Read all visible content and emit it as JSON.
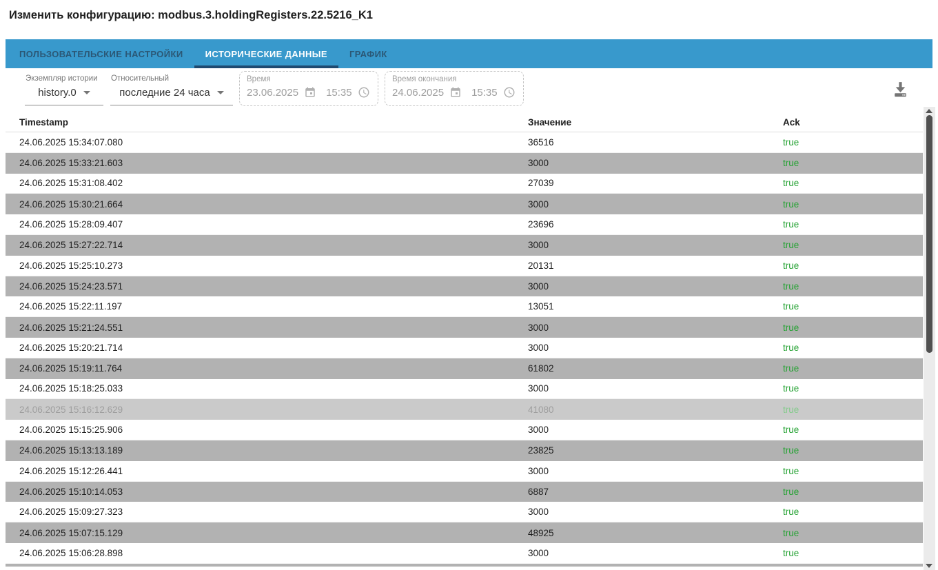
{
  "page": {
    "title": "Изменить конфигурацию: modbus.3.holdingRegisters.22.5216_K1"
  },
  "tabs": [
    {
      "label": "ПОЛЬЗОВАТЕЛЬСКИЕ НАСТРОЙКИ",
      "active": false
    },
    {
      "label": "ИСТОРИЧЕСКИЕ ДАННЫЕ",
      "active": true
    },
    {
      "label": "ГРАФИК",
      "active": false
    }
  ],
  "toolbar": {
    "history_instance": {
      "label": "Экземпляр истории",
      "value": "history.0"
    },
    "relative_range": {
      "label": "Относительный",
      "value": "последние 24 часа"
    },
    "time_start": {
      "label": "Время",
      "date": "23.06.2025",
      "time": "15:35"
    },
    "time_end": {
      "label": "Время окончания",
      "date": "24.06.2025",
      "time": "15:35"
    },
    "download_icon": "download-to-tray"
  },
  "table": {
    "columns": {
      "timestamp": "Timestamp",
      "value": "Значение",
      "ack": "Ack"
    },
    "rows": [
      {
        "timestamp": "24.06.2025 15:34:07.080",
        "value": "36516",
        "ack": "true",
        "variant": "white"
      },
      {
        "timestamp": "24.06.2025 15:33:21.603",
        "value": "3000",
        "ack": "true",
        "variant": "gray"
      },
      {
        "timestamp": "24.06.2025 15:31:08.402",
        "value": "27039",
        "ack": "true",
        "variant": "white"
      },
      {
        "timestamp": "24.06.2025 15:30:21.664",
        "value": "3000",
        "ack": "true",
        "variant": "gray"
      },
      {
        "timestamp": "24.06.2025 15:28:09.407",
        "value": "23696",
        "ack": "true",
        "variant": "white"
      },
      {
        "timestamp": "24.06.2025 15:27:22.714",
        "value": "3000",
        "ack": "true",
        "variant": "gray"
      },
      {
        "timestamp": "24.06.2025 15:25:10.273",
        "value": "20131",
        "ack": "true",
        "variant": "white"
      },
      {
        "timestamp": "24.06.2025 15:24:23.571",
        "value": "3000",
        "ack": "true",
        "variant": "gray"
      },
      {
        "timestamp": "24.06.2025 15:22:11.197",
        "value": "13051",
        "ack": "true",
        "variant": "white"
      },
      {
        "timestamp": "24.06.2025 15:21:24.551",
        "value": "3000",
        "ack": "true",
        "variant": "gray"
      },
      {
        "timestamp": "24.06.2025 15:20:21.714",
        "value": "3000",
        "ack": "true",
        "variant": "white"
      },
      {
        "timestamp": "24.06.2025 15:19:11.764",
        "value": "61802",
        "ack": "true",
        "variant": "gray"
      },
      {
        "timestamp": "24.06.2025 15:18:25.033",
        "value": "3000",
        "ack": "true",
        "variant": "white"
      },
      {
        "timestamp": "24.06.2025 15:16:12.629",
        "value": "41080",
        "ack": "true",
        "variant": "faded"
      },
      {
        "timestamp": "24.06.2025 15:15:25.906",
        "value": "3000",
        "ack": "true",
        "variant": "white"
      },
      {
        "timestamp": "24.06.2025 15:13:13.189",
        "value": "23825",
        "ack": "true",
        "variant": "gray"
      },
      {
        "timestamp": "24.06.2025 15:12:26.441",
        "value": "3000",
        "ack": "true",
        "variant": "white"
      },
      {
        "timestamp": "24.06.2025 15:10:14.053",
        "value": "6887",
        "ack": "true",
        "variant": "gray"
      },
      {
        "timestamp": "24.06.2025 15:09:27.323",
        "value": "3000",
        "ack": "true",
        "variant": "white"
      },
      {
        "timestamp": "24.06.2025 15:07:15.129",
        "value": "48925",
        "ack": "true",
        "variant": "gray"
      },
      {
        "timestamp": "24.06.2025 15:06:28.898",
        "value": "3000",
        "ack": "true",
        "variant": "white"
      }
    ],
    "partial_next_row_visible": true
  },
  "colors": {
    "tabbar_blue": "#3899cc",
    "inactive_tab_text": "#2b5876",
    "active_tab_indicator": "#1f4a70",
    "row_stripe_gray": "#b2b2b2",
    "row_faded_bg": "#cacaca",
    "ack_true_green": "#25a233",
    "ack_true_green_faded": "#84cb8c",
    "icon_gray": "#757575"
  }
}
